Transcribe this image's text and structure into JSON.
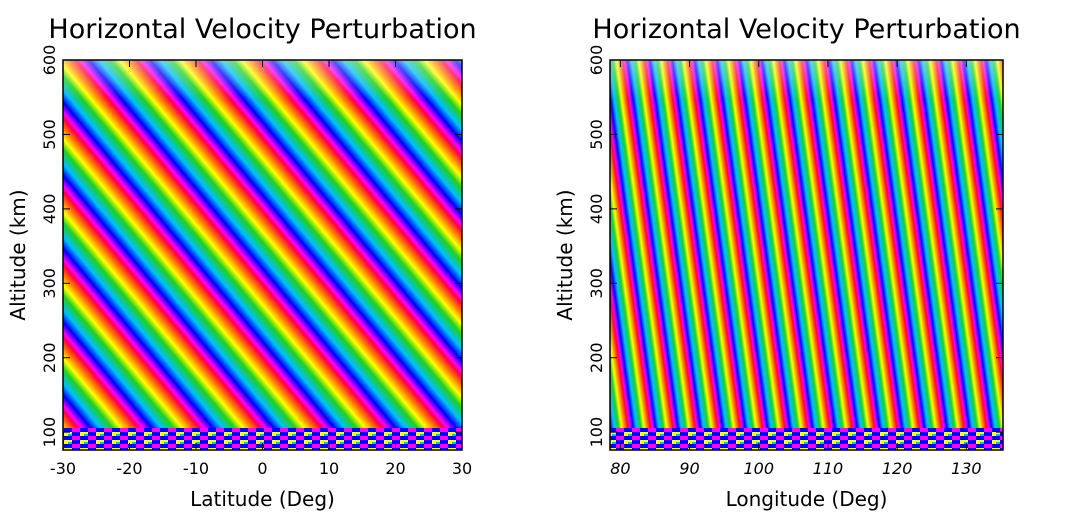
{
  "chart_data": [
    {
      "type": "heatmap",
      "title": "Horizontal Velocity Perturbation",
      "x_label": "Latitude (Deg)",
      "y_label": "Altitude (km)",
      "xlim": [
        -30,
        30
      ],
      "xticks": [
        -30,
        -20,
        -10,
        0,
        10,
        20,
        30
      ],
      "ylim": [
        76,
        600
      ],
      "yticks": [
        100,
        200,
        300,
        400,
        500,
        600
      ]
    },
    {
      "type": "heatmap",
      "title": "Horizontal Velocity Perturbation",
      "x_label": "Longitude (Deg)",
      "y_label": "Altitude (km)",
      "xlim": [
        78.5,
        135.3
      ],
      "xticks": [
        80,
        90,
        100,
        110,
        120,
        130
      ],
      "ylim": [
        76,
        600
      ],
      "yticks": [
        100,
        200,
        300,
        400,
        500,
        600
      ]
    }
  ]
}
